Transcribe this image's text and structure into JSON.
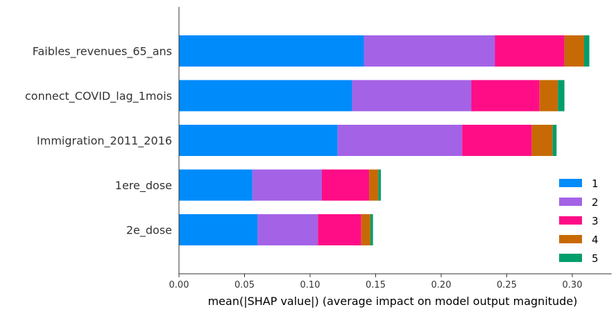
{
  "chart_data": {
    "type": "bar",
    "orientation": "horizontal",
    "stacked": true,
    "categories": [
      "Faibles_revenues_65_ans",
      "connect_COVID_lag_1mois",
      "Immigration_2011_2016",
      "1ere_dose",
      "2e_dose"
    ],
    "series": [
      {
        "name": "1",
        "color": "#008bfb",
        "values": [
          0.141,
          0.132,
          0.121,
          0.056,
          0.06
        ]
      },
      {
        "name": "2",
        "color": "#a463e6",
        "values": [
          0.1,
          0.091,
          0.095,
          0.053,
          0.046
        ]
      },
      {
        "name": "3",
        "color": "#ff0d87",
        "values": [
          0.053,
          0.052,
          0.053,
          0.036,
          0.033
        ]
      },
      {
        "name": "4",
        "color": "#c76a05",
        "values": [
          0.015,
          0.014,
          0.016,
          0.007,
          0.007
        ]
      },
      {
        "name": "5",
        "color": "#009e6b",
        "values": [
          0.004,
          0.005,
          0.003,
          0.002,
          0.002
        ]
      }
    ],
    "xlabel": "mean(|SHAP value|) (average impact on model output magnitude)",
    "xlim": [
      0,
      0.33
    ],
    "xticks": [
      "0.00",
      "0.05",
      "0.10",
      "0.15",
      "0.20",
      "0.25",
      "0.30"
    ],
    "grid": false,
    "legend": "bottom-right"
  }
}
